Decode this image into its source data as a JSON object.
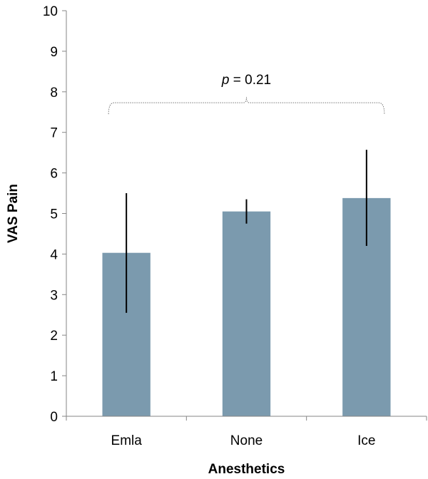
{
  "chart_data": {
    "type": "bar",
    "categories": [
      "Emla",
      "None",
      "Ice"
    ],
    "values": [
      4.03,
      5.05,
      5.38
    ],
    "error_bars": [
      {
        "low": 2.55,
        "high": 5.5
      },
      {
        "low": 4.75,
        "high": 5.35
      },
      {
        "low": 4.2,
        "high": 6.57
      }
    ],
    "xlabel": "Anesthetics",
    "ylabel": "VAS Pain",
    "ylim": [
      0,
      10
    ],
    "yticks": [
      0,
      1,
      2,
      3,
      4,
      5,
      6,
      7,
      8,
      9,
      10
    ],
    "bar_color": "#7b9aae",
    "error_color": "#000000",
    "annotation": {
      "prefix": "p",
      "text": " = 0.21",
      "bracket_level": 7.45,
      "bracket_from": "Emla",
      "bracket_to": "Ice"
    },
    "grid": false
  }
}
